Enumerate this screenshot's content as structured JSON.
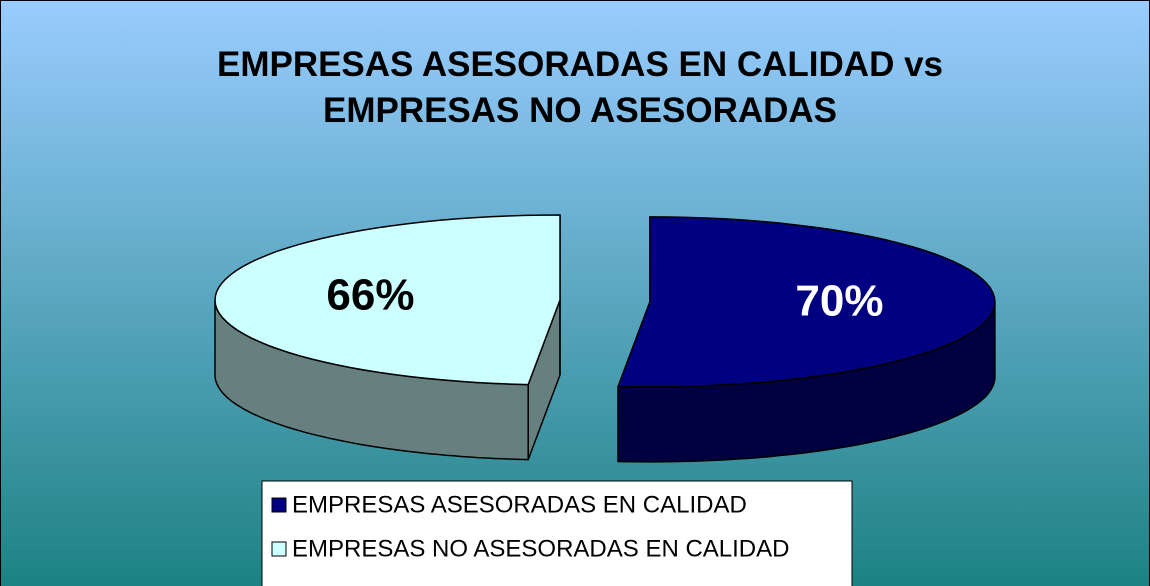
{
  "chart_data": {
    "type": "pie3d",
    "title": "EMPRESAS ASESORADAS EN CALIDAD vs EMPRESAS NO ASESORADAS",
    "categories": [
      "EMPRESAS ASESORADAS EN CALIDAD",
      "EMPRESAS NO ASESORADAS EN CALIDAD"
    ],
    "values": [
      70,
      66
    ],
    "value_labels": [
      "70%",
      "66%"
    ],
    "colors": [
      "#000080",
      "#ccffff"
    ],
    "label_colors": [
      "#ffffff",
      "#000000"
    ],
    "legend": "bottom"
  }
}
